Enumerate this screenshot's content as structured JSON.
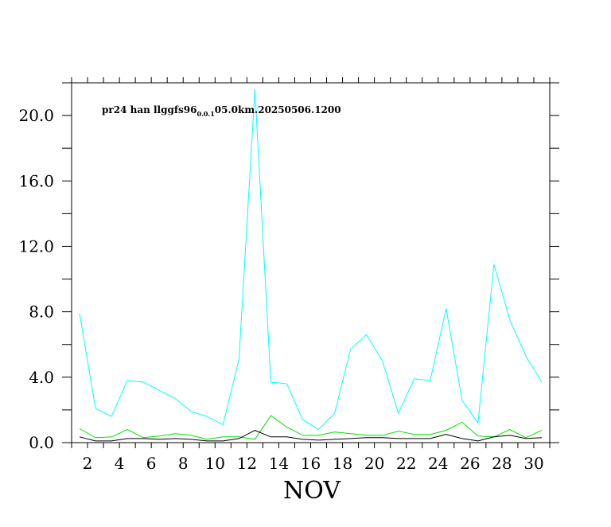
{
  "chart_data": {
    "type": "line",
    "title": "pr24 han llggfs96",
    "title_subscript": "0.0.1",
    "title_suffix": "05.0km.20250506.1200",
    "xlabel": "NOV",
    "ylabel": "",
    "xlim": [
      1,
      31
    ],
    "ylim": [
      0,
      22
    ],
    "x_ticks": [
      "2",
      "4",
      "6",
      "8",
      "10",
      "12",
      "14",
      "16",
      "18",
      "20",
      "22",
      "24",
      "26",
      "28",
      "30"
    ],
    "y_ticks": [
      "0.0",
      "4.0",
      "8.0",
      "12.0",
      "16.0",
      "20.0"
    ],
    "grid": false,
    "x": [
      1.5,
      2.5,
      3.5,
      4.5,
      5.5,
      6.5,
      7.5,
      8.5,
      9.5,
      10.5,
      11.5,
      12.5,
      13.5,
      14.5,
      15.5,
      16.5,
      17.5,
      18.5,
      19.5,
      20.5,
      21.5,
      22.5,
      23.5,
      24.5,
      25.5,
      26.5,
      27.5,
      28.5,
      29.5,
      30.5
    ],
    "series": [
      {
        "color": "#00ffff",
        "values": [
          7.9,
          2.1,
          1.6,
          3.8,
          3.7,
          3.2,
          2.7,
          1.9,
          1.6,
          1.1,
          5.1,
          21.6,
          3.7,
          3.6,
          1.4,
          0.8,
          1.8,
          5.7,
          6.6,
          5.0,
          1.8,
          3.9,
          3.8,
          8.2,
          2.6,
          1.2,
          10.9,
          7.5,
          5.3,
          3.7
        ]
      },
      {
        "color": "#00e000",
        "values": [
          0.85,
          0.3,
          0.35,
          0.8,
          0.3,
          0.4,
          0.55,
          0.45,
          0.2,
          0.35,
          0.35,
          0.2,
          1.65,
          0.95,
          0.45,
          0.45,
          0.65,
          0.55,
          0.45,
          0.45,
          0.7,
          0.5,
          0.5,
          0.75,
          1.25,
          0.4,
          0.35,
          0.8,
          0.3,
          0.75
        ]
      },
      {
        "color": "#000000",
        "values": [
          0.35,
          0.1,
          0.1,
          0.25,
          0.25,
          0.2,
          0.25,
          0.2,
          0.1,
          0.1,
          0.25,
          0.75,
          0.35,
          0.35,
          0.2,
          0.15,
          0.2,
          0.25,
          0.3,
          0.3,
          0.25,
          0.25,
          0.25,
          0.5,
          0.25,
          0.1,
          0.35,
          0.45,
          0.25,
          0.3
        ]
      }
    ]
  }
}
